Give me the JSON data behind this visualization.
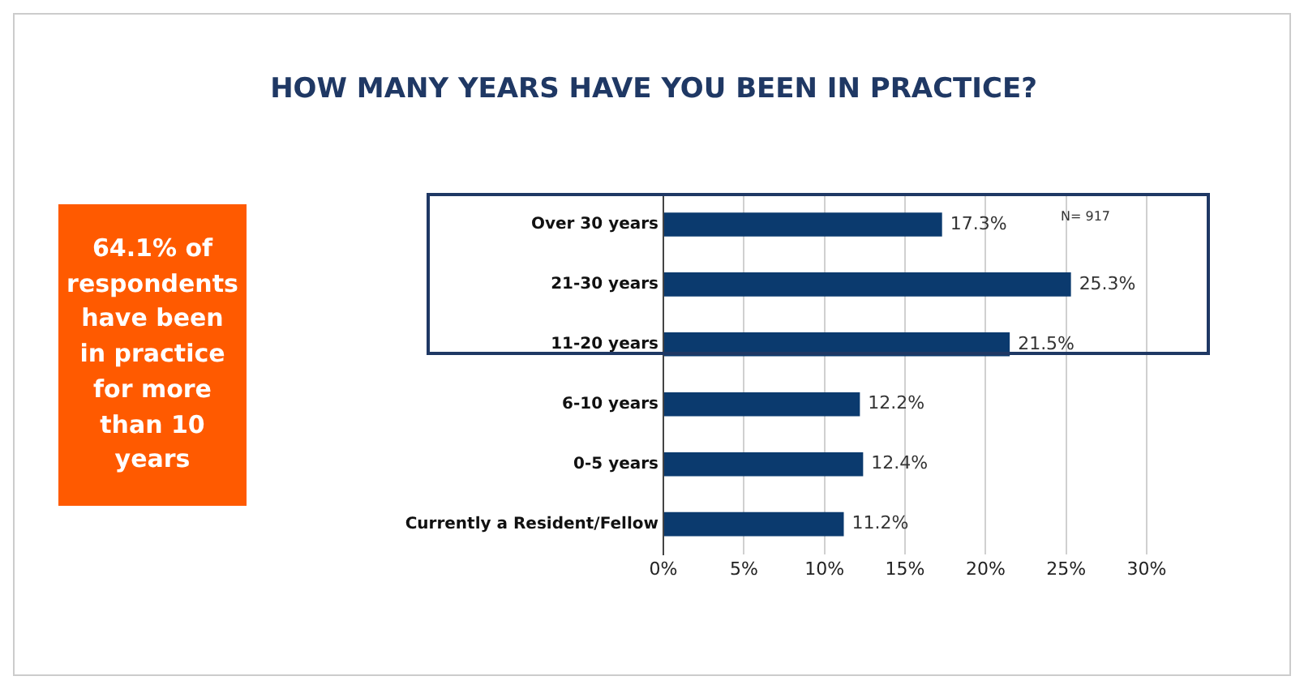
{
  "chart_data": {
    "type": "bar",
    "orientation": "horizontal",
    "title": "HOW MANY YEARS HAVE YOU BEEN IN PRACTICE?",
    "categories": [
      "Over 30 years",
      "21-30 years",
      "11-20 years",
      "6-10 years",
      "0-5 years",
      "Currently a Resident/Fellow"
    ],
    "values": [
      17.3,
      25.3,
      21.5,
      12.2,
      12.4,
      11.2
    ],
    "value_labels": [
      "17.3%",
      "25.3%",
      "21.5%",
      "12.2%",
      "12.4%",
      "11.2%"
    ],
    "color": "#0b3a6e",
    "xlim": [
      0,
      30
    ],
    "xticks": [
      {
        "value": 0,
        "label": "0%"
      },
      {
        "value": 5,
        "label": "5%"
      },
      {
        "value": 10,
        "label": "10%"
      },
      {
        "value": 15,
        "label": "15%"
      },
      {
        "value": 20,
        "label": "20%"
      },
      {
        "value": 25,
        "label": "25%"
      },
      {
        "value": 30,
        "label": "30%"
      }
    ],
    "grid": "x",
    "legend": false,
    "annotations": [
      "N= 917",
      "64.1% of respondents have been in practice for more than 10 years"
    ]
  }
}
